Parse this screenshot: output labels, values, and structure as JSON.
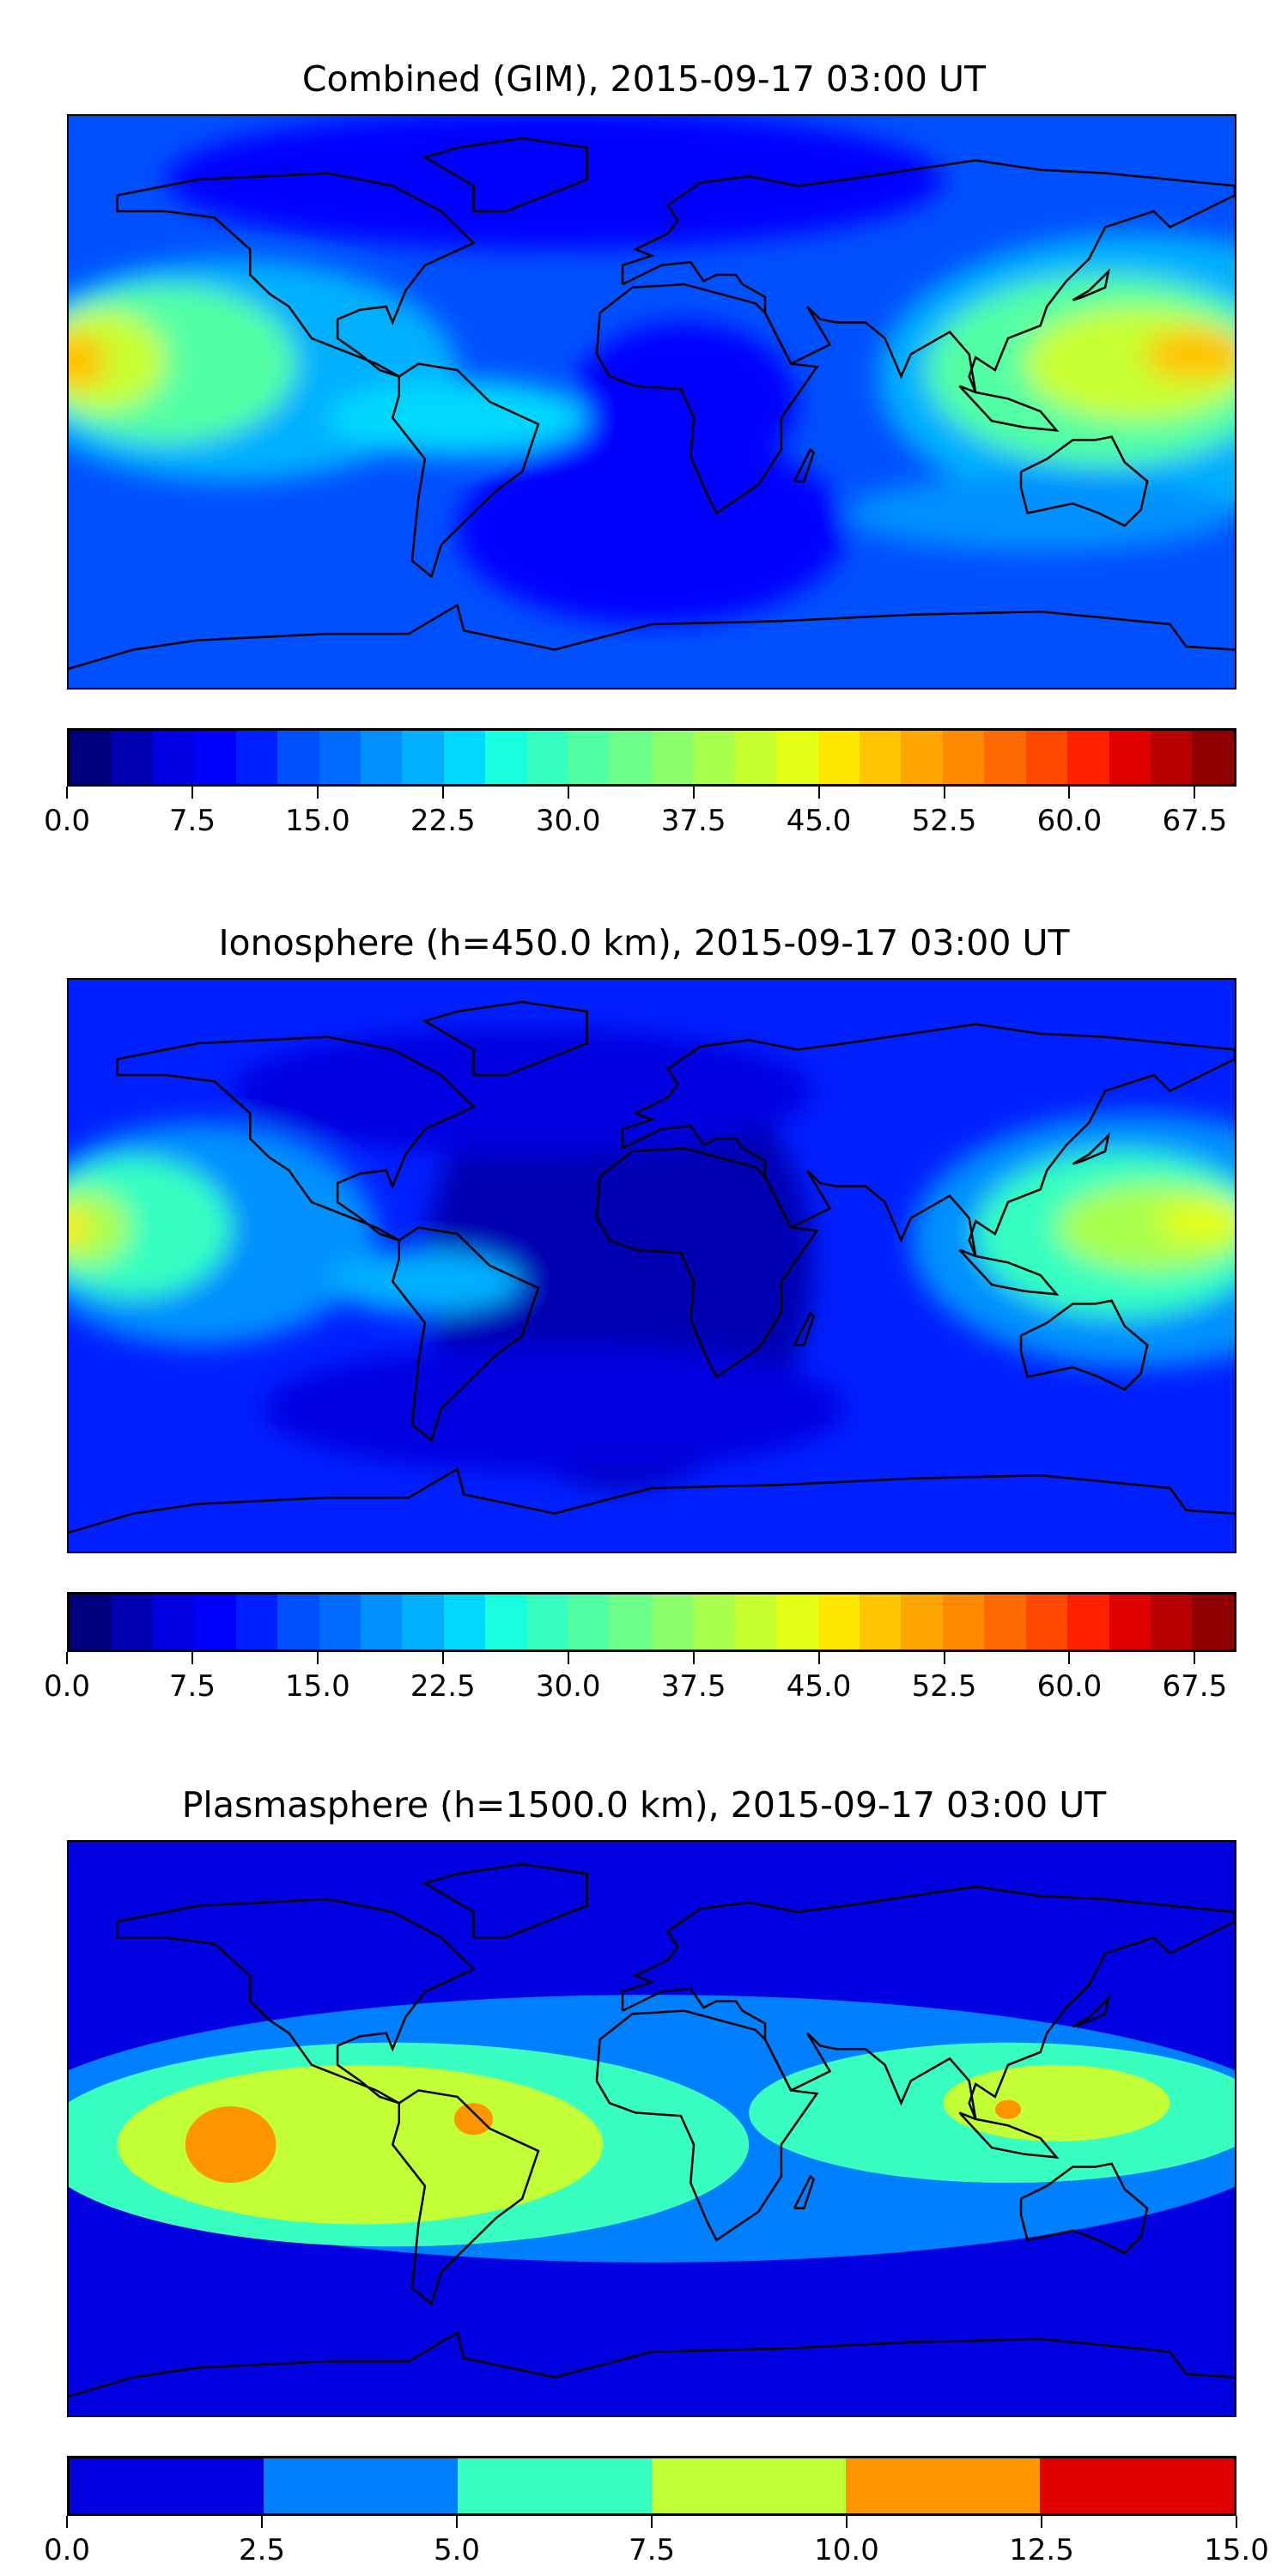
{
  "chart_data": [
    {
      "type": "heatmap",
      "title": "Combined (GIM), 2015-09-17 03:00 UT",
      "projection": "equirectangular world map",
      "colorbar": {
        "range": [
          0.0,
          70.0
        ],
        "levels": 28,
        "tick_labels": [
          "0.0",
          "7.5",
          "15.0",
          "22.5",
          "30.0",
          "37.5",
          "45.0",
          "52.5",
          "60.0",
          "67.5"
        ],
        "colors": [
          "#00007f",
          "#0000b2",
          "#0000e0",
          "#0000ff",
          "#0020ff",
          "#0050ff",
          "#006cff",
          "#0090ff",
          "#00b0ff",
          "#00d8ff",
          "#18ffe0",
          "#36ffc0",
          "#52ffa4",
          "#6cff8a",
          "#8aff6c",
          "#a8ff4e",
          "#c6ff30",
          "#e2ff14",
          "#ffe800",
          "#ffc400",
          "#ffa600",
          "#ff8a00",
          "#ff6a00",
          "#ff4800",
          "#ff2000",
          "#e00000",
          "#b80000",
          "#900000"
        ]
      },
      "features": "TEC peaks ~50 near lon 180 (Pacific, 10N) and ~45 over SE Asia / W Pacific; low values (~5) over Atlantic, Africa, polar regions"
    },
    {
      "type": "heatmap",
      "title": "Ionosphere  (h=450.0 km), 2015-09-17 03:00 UT",
      "projection": "equirectangular world map",
      "colorbar": {
        "range": [
          0.0,
          70.0
        ],
        "levels": 28,
        "tick_labels": [
          "0.0",
          "7.5",
          "15.0",
          "22.5",
          "30.0",
          "37.5",
          "45.0",
          "52.5",
          "60.0",
          "67.5"
        ],
        "colors": [
          "#00007f",
          "#0000b2",
          "#0000e0",
          "#0000ff",
          "#0020ff",
          "#0050ff",
          "#006cff",
          "#0090ff",
          "#00b0ff",
          "#00d8ff",
          "#18ffe0",
          "#36ffc0",
          "#52ffa4",
          "#6cff8a",
          "#8aff6c",
          "#a8ff4e",
          "#c6ff30",
          "#e2ff14",
          "#ffe800",
          "#ffc400",
          "#ffa600",
          "#ff8a00",
          "#ff6a00",
          "#ff4800",
          "#ff2000",
          "#e00000",
          "#b80000",
          "#900000"
        ]
      },
      "features": "Peaks ~45 near lon 180 and SE Asia; very low (~2) over Atlantic and Africa"
    },
    {
      "type": "heatmap",
      "title": "Plasmasphere (h=1500.0 km), 2015-09-17 03:00 UT",
      "projection": "equirectangular world map",
      "colorbar": {
        "range": [
          0.0,
          15.0
        ],
        "levels": 6,
        "tick_labels": [
          "0.0",
          "2.5",
          "5.0",
          "7.5",
          "10.0",
          "12.5",
          "15.0"
        ],
        "colors": [
          "#0000e0",
          "#0080ff",
          "#38ffc0",
          "#c2ff36",
          "#ff9600",
          "#e00000"
        ]
      },
      "features": "Values 7.5-12.5 over South America / E Pacific and SE Asia; 0-2.5 at high latitudes"
    }
  ]
}
